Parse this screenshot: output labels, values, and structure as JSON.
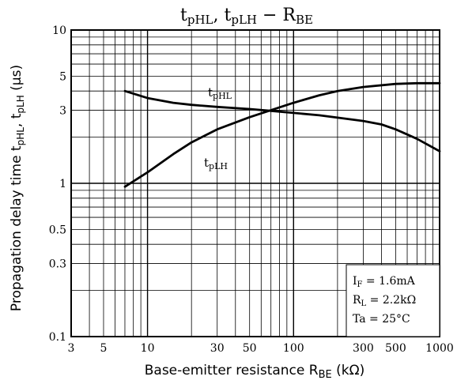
{
  "chart_data": {
    "type": "line",
    "title": {
      "main": "t",
      "sub1": "pHL",
      "sep1": ", t",
      "sub2": "pLH",
      "sep2": " − R",
      "sub3": "BE"
    },
    "xlabel": {
      "main": "Base-emitter resistance",
      "symbol": "R",
      "sub": "BE",
      "unit": "(kΩ)"
    },
    "ylabel": {
      "main": "Propagation delay time",
      "sym1": "t",
      "sub1": "pHL",
      "sep": ", t",
      "sub2": "pLH",
      "unit": "(μs)"
    },
    "x_scale": "log",
    "y_scale": "log",
    "xlim": [
      3,
      1000
    ],
    "ylim": [
      0.1,
      10
    ],
    "grid": true,
    "x_tick_labels": [
      {
        "value": 3,
        "label": "3"
      },
      {
        "value": 5,
        "label": "5"
      },
      {
        "value": 10,
        "label": "10"
      },
      {
        "value": 30,
        "label": "30"
      },
      {
        "value": 50,
        "label": "50"
      },
      {
        "value": 100,
        "label": "100"
      },
      {
        "value": 300,
        "label": "300"
      },
      {
        "value": 500,
        "label": "500"
      },
      {
        "value": 1000,
        "label": "1000"
      }
    ],
    "y_tick_labels": [
      {
        "value": 0.1,
        "label": "0.1"
      },
      {
        "value": 0.3,
        "label": "0.3"
      },
      {
        "value": 0.5,
        "label": "0.5"
      },
      {
        "value": 1,
        "label": "1"
      },
      {
        "value": 3,
        "label": "3"
      },
      {
        "value": 5,
        "label": "5"
      },
      {
        "value": 10,
        "label": "10"
      }
    ],
    "series": [
      {
        "name": "tpHL",
        "label_main": "t",
        "label_sub": "pHL",
        "x": [
          7,
          10,
          15,
          20,
          30,
          50,
          70,
          100,
          150,
          200,
          300,
          400,
          500,
          700,
          1000
        ],
        "y": [
          4.0,
          3.6,
          3.35,
          3.25,
          3.15,
          3.05,
          2.97,
          2.88,
          2.78,
          2.68,
          2.55,
          2.42,
          2.25,
          1.95,
          1.62
        ]
      },
      {
        "name": "tpLH",
        "label_main": "t",
        "label_sub": "pLH",
        "x": [
          7,
          10,
          15,
          20,
          30,
          50,
          70,
          100,
          150,
          200,
          300,
          500,
          700,
          1000
        ],
        "y": [
          0.95,
          1.18,
          1.55,
          1.85,
          2.25,
          2.7,
          3.0,
          3.35,
          3.75,
          4.0,
          4.25,
          4.45,
          4.5,
          4.5
        ]
      }
    ],
    "annotation_lines": [
      {
        "sym": "I",
        "sub": "F",
        "rest": " = 1.6mA"
      },
      {
        "sym": "R",
        "sub": "L",
        "rest": " = 2.2kΩ"
      },
      {
        "sym": "Ta",
        "sub": "",
        "rest": " = 25°C"
      }
    ]
  }
}
